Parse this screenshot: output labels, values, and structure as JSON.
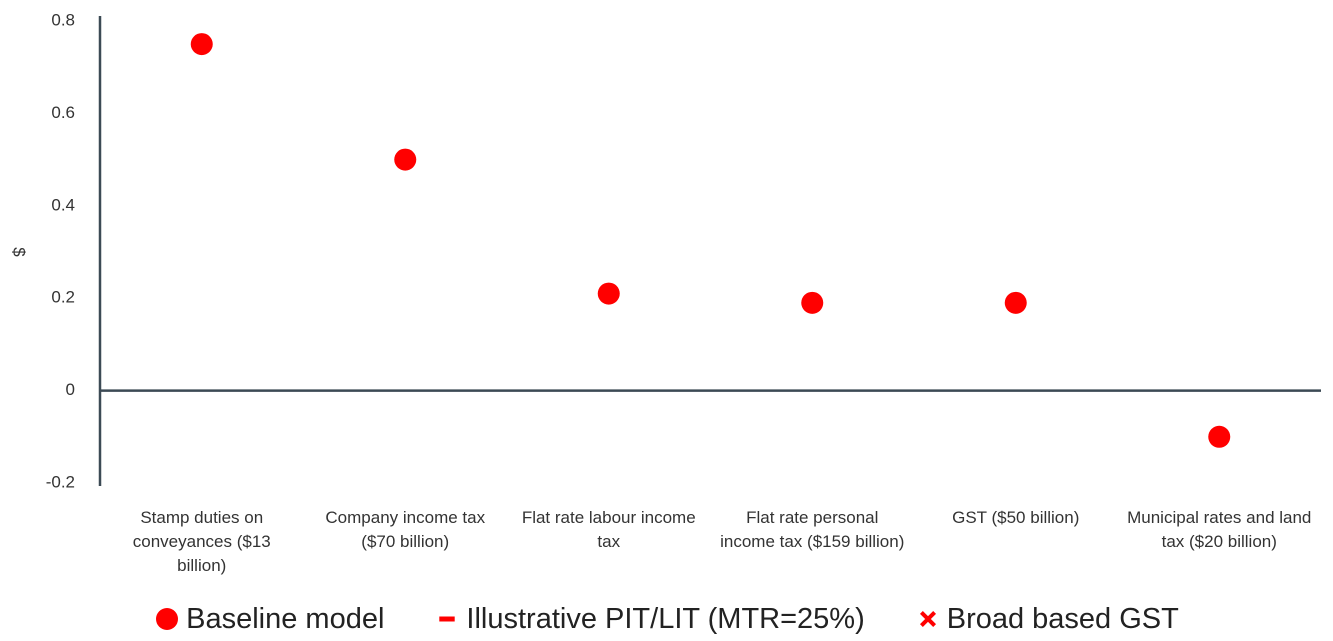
{
  "chart_data": {
    "type": "scatter",
    "ylabel": "$",
    "categories": [
      "Stamp duties on conveyances ($13 billion)",
      "Company income tax ($70 billion)",
      "Flat rate labour income tax",
      "Flat rate personal income tax ($159 billion)",
      "GST ($50 billion)",
      "Municipal rates and land tax ($20 billion)"
    ],
    "series": [
      {
        "name": "Baseline model",
        "color": "#ff0000",
        "marker": "circle",
        "values": [
          0.75,
          0.5,
          0.21,
          0.19,
          0.19,
          -0.1
        ]
      },
      {
        "name": "Illustrative PIT/LIT (MTR=25%)",
        "color": "#ff0000",
        "marker": "dash",
        "values": [
          null,
          null,
          null,
          null,
          null,
          null
        ]
      },
      {
        "name": "Broad based GST",
        "color": "#ff0000",
        "marker": "x",
        "values": [
          null,
          null,
          null,
          null,
          null,
          null
        ]
      }
    ],
    "ylim": [
      -0.2,
      0.8
    ],
    "yticks": [
      0.8,
      0.6,
      0.4,
      0.2,
      0,
      -0.2
    ],
    "grid": false,
    "legend": "bottom"
  }
}
